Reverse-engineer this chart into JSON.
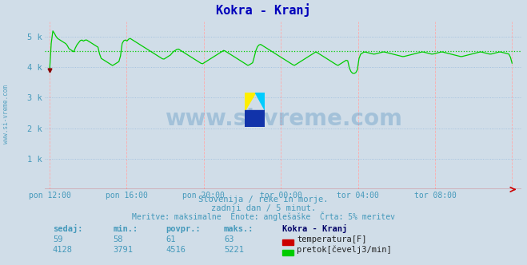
{
  "title": "Kokra - Kranj",
  "title_color": "#0000bb",
  "bg_color": "#d0dde8",
  "xlabel_ticks": [
    "pon 12:00",
    "pon 16:00",
    "pon 20:00",
    "tor 00:00",
    "tor 04:00",
    "tor 08:00"
  ],
  "ytick_values": [
    1000,
    2000,
    3000,
    4000,
    5000
  ],
  "ymin": 0,
  "ymax": 5500,
  "avg_flow": 4516,
  "flow_color": "#00cc00",
  "temp_color": "#cc0000",
  "text_color": "#4499bb",
  "watermark": "www.si-vreme.com",
  "sub_text1": "Slovenija / reke in morje.",
  "sub_text2": "zadnji dan / 5 minut.",
  "sub_text3": "Meritve: maksimalne  Enote: anglešaške  Črta: 5% meritev",
  "legend_title": "Kokra - Kranj",
  "leg_temp_label": "temperatura[F]",
  "leg_flow_label": "pretok[čevelj3/min]",
  "sedaj_temp": 59,
  "min_temp": 58,
  "povpr_temp": 61,
  "maks_temp": 63,
  "sedaj_flow": 4128,
  "min_flow": 3791,
  "povpr_flow": 4516,
  "maks_flow": 5221,
  "left_label": "www.si-vreme.com",
  "flow_data": [
    3900,
    5221,
    5100,
    4950,
    4900,
    4850,
    4800,
    4750,
    4600,
    4550,
    4500,
    4700,
    4800,
    4900,
    4850,
    4900,
    4850,
    4800,
    4750,
    4700,
    4650,
    4300,
    4250,
    4200,
    4150,
    4100,
    4050,
    4100,
    4150,
    4200,
    4800,
    4900,
    4850,
    4950,
    4900,
    4850,
    4800,
    4750,
    4700,
    4650,
    4600,
    4550,
    4500,
    4450,
    4400,
    4350,
    4300,
    4250,
    4300,
    4350,
    4400,
    4500,
    4550,
    4600,
    4550,
    4500,
    4450,
    4400,
    4350,
    4300,
    4250,
    4200,
    4150,
    4100,
    4150,
    4200,
    4250,
    4300,
    4350,
    4400,
    4450,
    4500,
    4550,
    4500,
    4450,
    4400,
    4350,
    4300,
    4250,
    4200,
    4150,
    4100,
    4050,
    4100,
    4150,
    4500,
    4700,
    4750,
    4700,
    4650,
    4600,
    4550,
    4500,
    4450,
    4400,
    4350,
    4300,
    4250,
    4200,
    4150,
    4100,
    4050,
    4100,
    4150,
    4200,
    4250,
    4300,
    4350,
    4400,
    4450,
    4500,
    4450,
    4400,
    4350,
    4300,
    4250,
    4200,
    4150,
    4100,
    4050,
    4100,
    4150,
    4200,
    4250,
    3900,
    3800,
    3791,
    3850,
    4400,
    4450,
    4500,
    4480,
    4460,
    4440,
    4420,
    4440,
    4460,
    4480,
    4500,
    4480,
    4460,
    4440,
    4420,
    4400,
    4380,
    4360,
    4340,
    4360,
    4380,
    4400,
    4420,
    4440,
    4460,
    4480,
    4500,
    4480,
    4460,
    4440,
    4420,
    4440,
    4460,
    4480,
    4500,
    4480,
    4460,
    4440,
    4420,
    4400,
    4380,
    4360,
    4340,
    4360,
    4380,
    4400,
    4420,
    4440,
    4460,
    4480,
    4500,
    4480,
    4460,
    4440,
    4420,
    4440,
    4460,
    4480,
    4500,
    4480,
    4460,
    4440,
    4420,
    4128
  ]
}
